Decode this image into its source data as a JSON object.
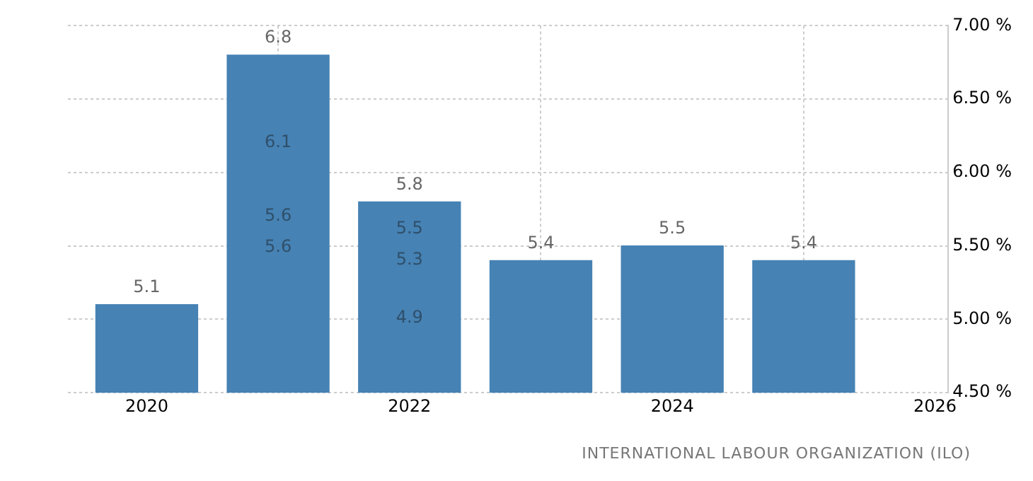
{
  "chart_data": {
    "type": "bar",
    "x": [
      2020,
      2021,
      2022,
      2023,
      2024,
      2025
    ],
    "values": [
      5.1,
      6.8,
      5.8,
      5.4,
      5.5,
      5.4
    ],
    "color": "#4682b4",
    "xlim": [
      2019.4,
      2026.1
    ],
    "xticks": [
      2020,
      2022,
      2024,
      2026
    ],
    "ylim": [
      4.5,
      7.0
    ],
    "yticks": [
      {
        "value": 4.5,
        "label": "4.50 %"
      },
      {
        "value": 5.0,
        "label": "5.00 %"
      },
      {
        "value": 5.5,
        "label": "5.50 %"
      },
      {
        "value": 6.0,
        "label": "6.00 %"
      },
      {
        "value": 6.5,
        "label": "6.50 %"
      },
      {
        "value": 7.0,
        "label": "7.00 %"
      }
    ],
    "grid": true,
    "data_labels": true,
    "annotations": [
      "6.1",
      "5.6",
      "5.6",
      "5.5",
      "5.3",
      "4.9",
      "INTERNATIONAL LABOUR ORGANIZATION (ILO)"
    ]
  }
}
